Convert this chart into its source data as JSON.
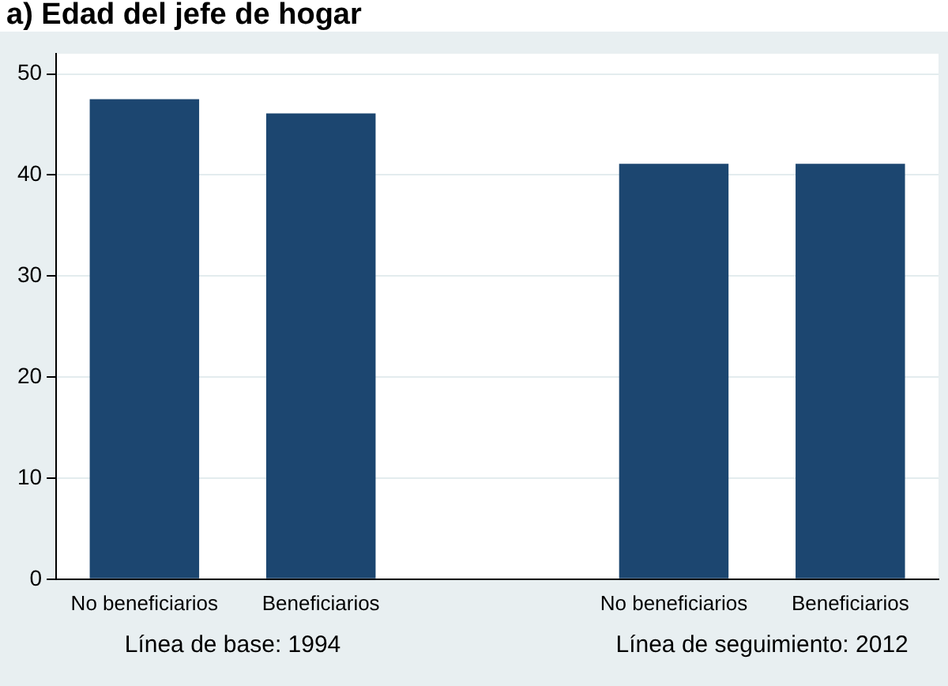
{
  "chart_data": {
    "type": "bar",
    "title": "a) Edad del jefe de hogar",
    "categories": [
      "No beneficiarios",
      "Beneficiarios",
      null,
      "No beneficiarios",
      "Beneficiarios"
    ],
    "values": [
      47.5,
      46.1,
      null,
      41.1,
      41.1
    ],
    "color": "#1c4670",
    "ylim": [
      0,
      52
    ],
    "yticks": [
      0,
      10,
      20,
      30,
      40,
      50
    ],
    "grid": "y",
    "legend": false,
    "annotations": [
      "Línea de base: 1994",
      "Línea de seguimiento: 2012"
    ]
  }
}
